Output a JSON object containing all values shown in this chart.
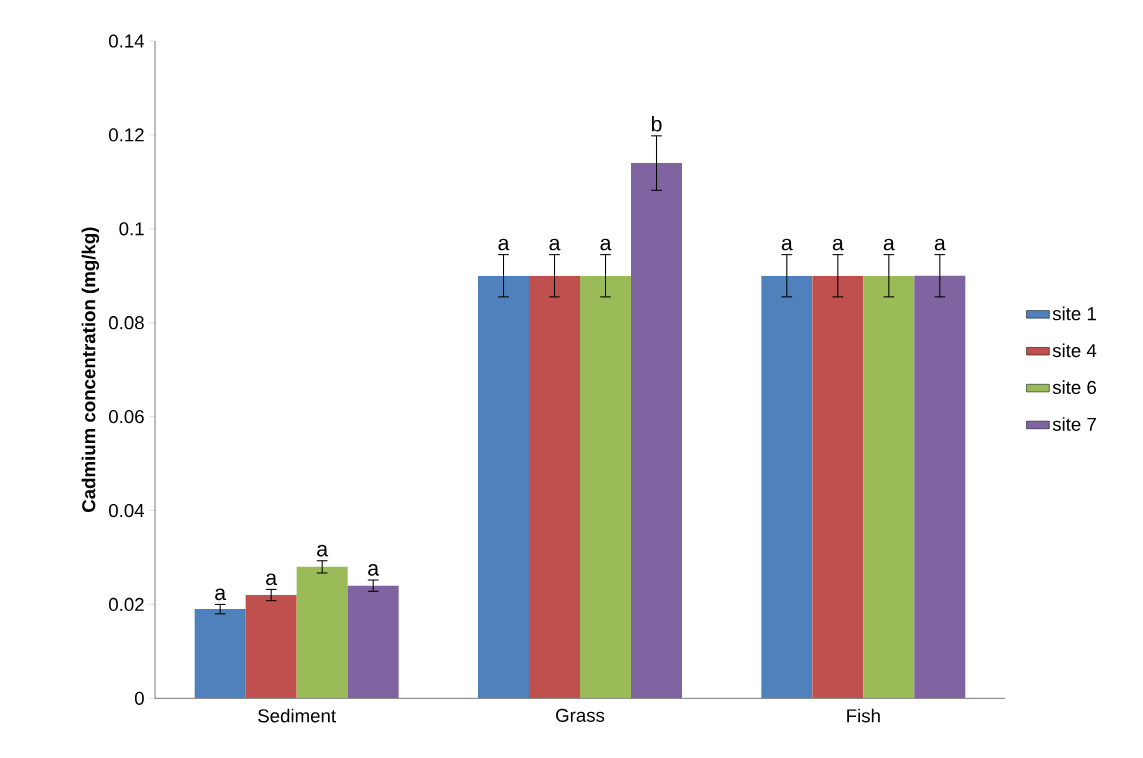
{
  "chart_data": {
    "type": "bar",
    "ylabel": "Cadmium concentration (mg/kg)",
    "categories": [
      "Sediment",
      "Grass",
      "Fish"
    ],
    "series": [
      {
        "name": "site 1",
        "color": "#4f81bd",
        "values": [
          0.019,
          0.09,
          0.09
        ],
        "errors": [
          0.001,
          0.0045,
          0.0045
        ],
        "value_labels": [
          "a",
          "a",
          "a"
        ]
      },
      {
        "name": "site 4",
        "color": "#c0504d",
        "values": [
          0.022,
          0.09,
          0.09
        ],
        "errors": [
          0.0012,
          0.0045,
          0.0045
        ],
        "value_labels": [
          "a",
          "a",
          "a"
        ]
      },
      {
        "name": "site 6",
        "color": "#9bbb59",
        "values": [
          0.028,
          0.09,
          0.09
        ],
        "errors": [
          0.0013,
          0.0045,
          0.0045
        ],
        "value_labels": [
          "a",
          "a",
          "a"
        ]
      },
      {
        "name": "site 7",
        "color": "#8064a2",
        "values": [
          0.024,
          0.114,
          0.09
        ],
        "errors": [
          0.0012,
          0.0058,
          0.0045
        ],
        "value_labels": [
          "a",
          "b",
          "a"
        ]
      }
    ],
    "ylim": [
      0,
      0.14
    ],
    "yticks": [
      0,
      0.02,
      0.04,
      0.06,
      0.08,
      0.1,
      0.12,
      0.14
    ],
    "grid": false,
    "legend": "right"
  }
}
